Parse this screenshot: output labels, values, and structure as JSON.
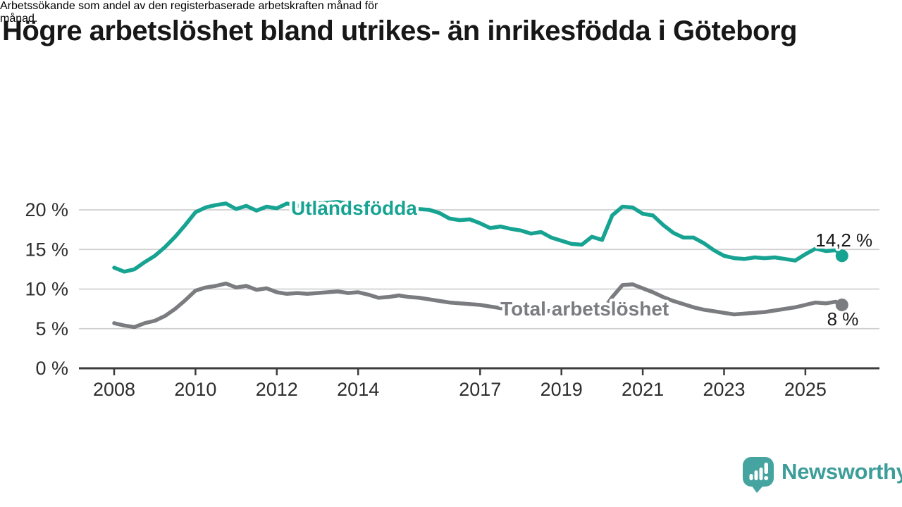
{
  "title": "Högre arbetslöshet bland utrikes- än inrikesfödda i Göteborg",
  "subtitle_lines": [
    "Arbetssökande som andel av den registerbaserade arbetskraften månad för",
    "månad."
  ],
  "branding": {
    "logo_text": "Newsworthy",
    "logo_color": "#45a3a0"
  },
  "chart_data": {
    "type": "line",
    "title": "Arbetssökande som andel av den registerbaserade arbetskraften månad för månad",
    "xlabel": "",
    "ylabel": "",
    "xlim": [
      2007.9,
      2026.9
    ],
    "ylim": [
      0,
      22
    ],
    "grid": true,
    "grid_color": "#d0d0d0",
    "axis_color": "#3c3c3c",
    "x_tick_values": [
      2008,
      2010,
      2012,
      2014,
      2017,
      2019,
      2021,
      2023,
      2025
    ],
    "x_tick_labels": [
      "2008",
      "2010",
      "2012",
      "2014",
      "2017",
      "2019",
      "2021",
      "2023",
      "2025"
    ],
    "y_tick_values": [
      0,
      5,
      10,
      15,
      20
    ],
    "y_tick_labels": [
      "0 %",
      "5 %",
      "10 %",
      "15 %",
      "20 %"
    ],
    "x": [
      2008.0,
      2008.25,
      2008.5,
      2008.75,
      2009.0,
      2009.25,
      2009.5,
      2009.75,
      2010.0,
      2010.25,
      2010.5,
      2010.75,
      2011.0,
      2011.25,
      2011.5,
      2011.75,
      2012.0,
      2012.25,
      2012.5,
      2012.75,
      2013.0,
      2013.25,
      2013.5,
      2013.75,
      2014.0,
      2014.25,
      2014.5,
      2014.75,
      2015.0,
      2015.25,
      2015.5,
      2015.75,
      2016.0,
      2016.25,
      2016.5,
      2016.75,
      2017.0,
      2017.25,
      2017.5,
      2017.75,
      2018.0,
      2018.25,
      2018.5,
      2018.75,
      2019.0,
      2019.25,
      2019.5,
      2019.75,
      2020.0,
      2020.25,
      2020.5,
      2020.75,
      2021.0,
      2021.25,
      2021.5,
      2021.75,
      2022.0,
      2022.25,
      2022.5,
      2022.75,
      2023.0,
      2023.25,
      2023.5,
      2023.75,
      2024.0,
      2024.25,
      2024.5,
      2024.75,
      2025.0,
      2025.25,
      2025.5,
      2025.75,
      2025.9
    ],
    "series": [
      {
        "name": "Utlandsfödda",
        "color": "#17a392",
        "end_label": "14,2 %",
        "label_at": {
          "t": 2012.35,
          "v": 19.4
        },
        "end_label_at": {
          "t": 2025.95,
          "v": 15.4
        },
        "values": [
          12.7,
          12.2,
          12.5,
          13.4,
          14.2,
          15.3,
          16.6,
          18.1,
          19.7,
          20.3,
          20.6,
          20.8,
          20.1,
          20.5,
          19.9,
          20.4,
          20.2,
          20.8,
          20.5,
          20.7,
          20.8,
          20.9,
          21.0,
          20.8,
          20.7,
          20.5,
          20.4,
          20.3,
          20.2,
          20.1,
          20.1,
          20.0,
          19.6,
          18.9,
          18.7,
          18.8,
          18.3,
          17.7,
          17.9,
          17.6,
          17.4,
          17.0,
          17.2,
          16.5,
          16.1,
          15.7,
          15.6,
          16.6,
          16.2,
          19.3,
          20.4,
          20.3,
          19.5,
          19.3,
          18.1,
          17.1,
          16.5,
          16.5,
          15.8,
          14.9,
          14.2,
          13.9,
          13.8,
          14.0,
          13.9,
          14.0,
          13.8,
          13.6,
          14.4,
          15.1,
          14.8,
          14.9,
          14.2
        ]
      },
      {
        "name": "Total arbetslöshet",
        "color": "#7b7c80",
        "end_label": "8 %",
        "label_at": {
          "t": 2017.5,
          "v": 6.67
        },
        "end_label_at": {
          "t": 2025.92,
          "v": 5.42
        },
        "values": [
          5.7,
          5.4,
          5.2,
          5.7,
          6.0,
          6.6,
          7.5,
          8.6,
          9.8,
          10.2,
          10.4,
          10.7,
          10.2,
          10.4,
          9.9,
          10.1,
          9.6,
          9.4,
          9.5,
          9.4,
          9.5,
          9.6,
          9.7,
          9.5,
          9.6,
          9.3,
          8.9,
          9.0,
          9.2,
          9.0,
          8.9,
          8.7,
          8.5,
          8.3,
          8.2,
          8.1,
          8.0,
          7.8,
          7.6,
          7.4,
          7.3,
          7.4,
          7.3,
          7.2,
          7.2,
          7.1,
          7.0,
          7.1,
          7.2,
          9.0,
          10.5,
          10.6,
          10.1,
          9.6,
          9.0,
          8.5,
          8.1,
          7.7,
          7.4,
          7.2,
          7.0,
          6.8,
          6.9,
          7.0,
          7.1,
          7.3,
          7.5,
          7.7,
          8.0,
          8.3,
          8.2,
          8.4,
          8.0
        ]
      }
    ]
  }
}
